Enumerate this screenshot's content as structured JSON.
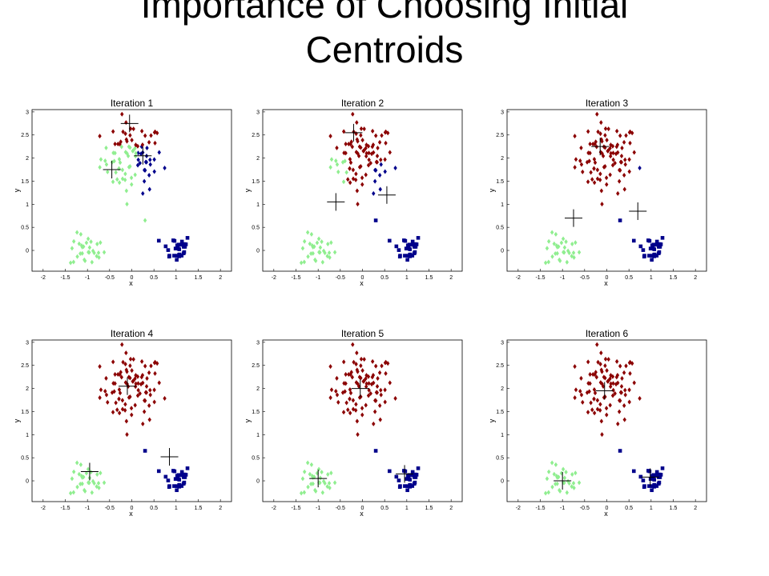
{
  "title": "Importance of Choosing Initial Centroids",
  "title_line1": "Importance of Choosing Initial",
  "title_line2": "Centroids",
  "colors": {
    "cluster_red": "#8b0000",
    "cluster_green": "#90ee90",
    "cluster_blue": "#00008b",
    "centroid": "#000000"
  },
  "chart_data": [
    {
      "type": "scatter",
      "title": "Iteration 1",
      "xlabel": "x",
      "ylabel": "y",
      "xlim": [
        -2.25,
        2.25
      ],
      "ylim": [
        -0.45,
        3.05
      ],
      "xticks": [
        "-2",
        "-1.5",
        "-1",
        "-0.5",
        "0",
        "0.5",
        "1",
        "1.5",
        "2"
      ],
      "yticks": [
        "0",
        "0.5",
        "1",
        "1.5",
        "2",
        "2.5",
        "3"
      ],
      "grid": false,
      "centroids": [
        {
          "x": -0.05,
          "y": 2.75
        },
        {
          "x": 0.25,
          "y": 2.05
        },
        {
          "x": -0.45,
          "y": 1.75
        }
      ],
      "assignment": "red: y>2.2 (upper cloud top); blue: x>0.1 in upper cloud and lower-right group; green: left of upper cloud and lower-left group"
    },
    {
      "type": "scatter",
      "title": "Iteration 2",
      "xlabel": "x",
      "ylabel": "y",
      "xlim": [
        -2.25,
        2.25
      ],
      "ylim": [
        -0.45,
        3.05
      ],
      "xticks": [
        "-2",
        "-1.5",
        "-1",
        "-0.5",
        "0",
        "0.5",
        "1",
        "1.5",
        "2"
      ],
      "yticks": [
        "0",
        "0.5",
        "1",
        "1.5",
        "2",
        "2.5",
        "3"
      ],
      "grid": false,
      "centroids": [
        {
          "x": -0.2,
          "y": 2.55
        },
        {
          "x": 0.55,
          "y": 1.2
        },
        {
          "x": -0.6,
          "y": 1.05
        }
      ],
      "assignment": "red grows to most of upper cloud; green keeps left part and lower-left; blue keeps right part and lower-right"
    },
    {
      "type": "scatter",
      "title": "Iteration 3",
      "xlabel": "x",
      "ylabel": "y",
      "xlim": [
        -2.25,
        2.25
      ],
      "ylim": [
        -0.45,
        3.05
      ],
      "xticks": [
        "-2",
        "-1.5",
        "-1",
        "-0.5",
        "0",
        "0.5",
        "1",
        "1.5",
        "2"
      ],
      "yticks": [
        "0",
        "0.5",
        "1",
        "1.5",
        "2",
        "2.5",
        "3"
      ],
      "grid": false,
      "centroids": [
        {
          "x": -0.15,
          "y": 2.25
        },
        {
          "x": 0.7,
          "y": 0.85
        },
        {
          "x": -0.75,
          "y": 0.7
        }
      ],
      "assignment": "red holds nearly all of upper cloud"
    },
    {
      "type": "scatter",
      "title": "Iteration 4",
      "xlabel": "x",
      "ylabel": "y",
      "xlim": [
        -2.25,
        2.25
      ],
      "ylim": [
        -0.45,
        3.05
      ],
      "xticks": [
        "-2",
        "-1.5",
        "-1",
        "-0.5",
        "0",
        "0.5",
        "1",
        "1.5",
        "2"
      ],
      "yticks": [
        "0",
        "0.5",
        "1",
        "1.5",
        "2",
        "2.5",
        "3"
      ],
      "grid": false,
      "centroids": [
        {
          "x": -0.1,
          "y": 2.05
        },
        {
          "x": 0.85,
          "y": 0.52
        },
        {
          "x": -0.95,
          "y": 0.2
        }
      ],
      "assignment": "three natural clusters"
    },
    {
      "type": "scatter",
      "title": "Iteration 5",
      "xlabel": "x",
      "ylabel": "y",
      "xlim": [
        -2.25,
        2.25
      ],
      "ylim": [
        -0.45,
        3.05
      ],
      "xticks": [
        "-2",
        "-1.5",
        "-1",
        "-0.5",
        "0",
        "0.5",
        "1",
        "1.5",
        "2"
      ],
      "yticks": [
        "0",
        "0.5",
        "1",
        "1.5",
        "2",
        "2.5",
        "3"
      ],
      "grid": false,
      "centroids": [
        {
          "x": -0.05,
          "y": 2.0
        },
        {
          "x": 0.95,
          "y": 0.15
        },
        {
          "x": -1.0,
          "y": 0.05
        }
      ],
      "assignment": "three natural clusters"
    },
    {
      "type": "scatter",
      "title": "Iteration 6",
      "xlabel": "x",
      "ylabel": "y",
      "xlim": [
        -2.25,
        2.25
      ],
      "ylim": [
        -0.45,
        3.05
      ],
      "xticks": [
        "-2",
        "-1.5",
        "-1",
        "-0.5",
        "0",
        "0.5",
        "1",
        "1.5",
        "2"
      ],
      "yticks": [
        "0",
        "0.5",
        "1",
        "1.5",
        "2",
        "2.5",
        "3"
      ],
      "grid": false,
      "centroids": [
        {
          "x": -0.05,
          "y": 1.95
        },
        {
          "x": 0.98,
          "y": 0.08
        },
        {
          "x": -1.0,
          "y": 0.0
        }
      ],
      "assignment": "converged: three natural clusters"
    }
  ]
}
